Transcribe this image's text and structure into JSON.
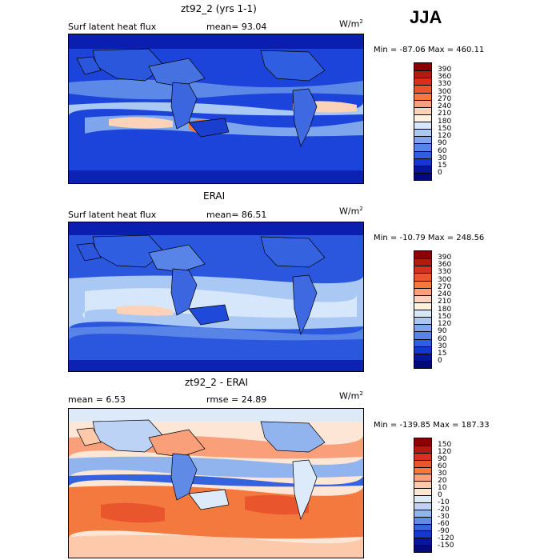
{
  "season": "JJA",
  "panels": [
    {
      "title": "zt92_2 (yrs 1-1)",
      "sub_left": "Surf latent heat flux",
      "sub_mid": "mean=  93.04",
      "units_base": "W/m",
      "units_exp": "2",
      "minmax": "Min = -87.06  Max = 460.11",
      "colorbar": {
        "labels": [
          "390",
          "360",
          "330",
          "300",
          "270",
          "240",
          "210",
          "180",
          "150",
          "120",
          "90",
          "60",
          "30",
          "15",
          "0"
        ],
        "colors": [
          "#8b0000",
          "#b51a0e",
          "#d7301f",
          "#e9552c",
          "#f4793e",
          "#f9a07a",
          "#fcd2b8",
          "#fff2e0",
          "#d6e7fb",
          "#a9c8f3",
          "#7ea6ec",
          "#5784e6",
          "#2f5fe0",
          "#1238d0",
          "#06169a",
          "#000a7a"
        ]
      }
    },
    {
      "title": "ERAI",
      "sub_left": "Surf latent heat flux",
      "sub_mid": "mean=  86.51",
      "units_base": "W/m",
      "units_exp": "2",
      "minmax": "Min = -10.79  Max = 248.56",
      "colorbar": {
        "labels": [
          "390",
          "360",
          "330",
          "300",
          "270",
          "240",
          "210",
          "180",
          "150",
          "120",
          "90",
          "60",
          "30",
          "15",
          "0"
        ],
        "colors": [
          "#8b0000",
          "#b51a0e",
          "#d7301f",
          "#e9552c",
          "#f4793e",
          "#f9a07a",
          "#fcd2b8",
          "#fff2e0",
          "#d6e7fb",
          "#a9c8f3",
          "#7ea6ec",
          "#5784e6",
          "#2f5fe0",
          "#1238d0",
          "#06169a",
          "#000a7a"
        ]
      }
    },
    {
      "title": "zt92_2 - ERAI",
      "sub_left": "mean =    6.53",
      "sub_mid": "rmse =  24.89",
      "units_base": "W/m",
      "units_exp": "2",
      "minmax": "Min = -139.85  Max = 187.33",
      "colorbar": {
        "labels": [
          "150",
          "120",
          "90",
          "60",
          "30",
          "20",
          "10",
          "0",
          "-10",
          "-20",
          "-30",
          "-60",
          "-90",
          "-120",
          "-150"
        ],
        "colors": [
          "#8b0000",
          "#b51a0e",
          "#d7301f",
          "#e9552c",
          "#f4793e",
          "#f9a07a",
          "#fcc9ab",
          "#fde6d6",
          "#ddeafa",
          "#bcd3f5",
          "#92b4ee",
          "#5f8be7",
          "#3563e0",
          "#1538cf",
          "#07179c",
          "#000a7a"
        ]
      }
    }
  ],
  "chart_data": [
    {
      "type": "heatmap",
      "title": "zt92_2 (yrs 1-1)",
      "field": "Surf latent heat flux",
      "units": "W/m2",
      "mean": 93.04,
      "min": -87.06,
      "max": 460.11,
      "contour_levels": [
        0,
        15,
        30,
        60,
        90,
        120,
        150,
        180,
        210,
        240,
        270,
        300,
        330,
        360,
        390
      ]
    },
    {
      "type": "heatmap",
      "title": "ERAI",
      "field": "Surf latent heat flux",
      "units": "W/m2",
      "mean": 86.51,
      "min": -10.79,
      "max": 248.56,
      "contour_levels": [
        0,
        15,
        30,
        60,
        90,
        120,
        150,
        180,
        210,
        240,
        270,
        300,
        330,
        360,
        390
      ]
    },
    {
      "type": "heatmap",
      "title": "zt92_2 - ERAI",
      "units": "W/m2",
      "mean": 6.53,
      "rmse": 24.89,
      "min": -139.85,
      "max": 187.33,
      "contour_levels": [
        -150,
        -120,
        -90,
        -60,
        -30,
        -20,
        -10,
        0,
        10,
        20,
        30,
        60,
        90,
        120,
        150
      ]
    }
  ]
}
